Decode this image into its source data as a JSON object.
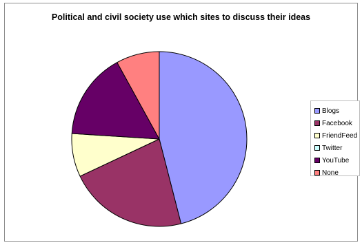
{
  "chart_data": {
    "type": "pie",
    "title": "Political and civil society use which sites to discuss their ideas",
    "categories": [
      "Blogs",
      "Facebook",
      "FriendFeed",
      "Twitter",
      "YouTube",
      "None"
    ],
    "values": [
      46,
      22,
      8,
      0,
      16,
      8
    ],
    "colors": [
      "#9999ff",
      "#993366",
      "#ffffcc",
      "#ccffff",
      "#660066",
      "#ff8080"
    ],
    "legend_position": "right"
  }
}
